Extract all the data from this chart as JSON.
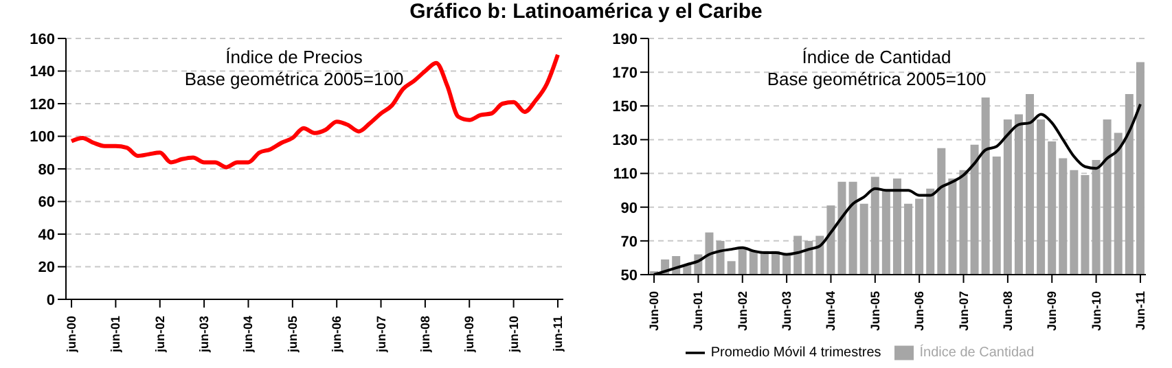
{
  "chart_data": [
    {
      "type": "line",
      "title": "Gráfico b: Latinoamérica y el Caribe",
      "annotations": [
        "Índice de Precios",
        "Base geométrica 2005=100"
      ],
      "categories": [
        "jun-00",
        null,
        null,
        null,
        "jun-01",
        null,
        null,
        null,
        "jun-02",
        null,
        null,
        null,
        "jun-03",
        null,
        null,
        null,
        "jun-04",
        null,
        null,
        null,
        "jun-05",
        null,
        null,
        null,
        "jun-06",
        null,
        null,
        null,
        "jun-07",
        null,
        null,
        null,
        "jun-08",
        null,
        null,
        null,
        "jun-09",
        null,
        null,
        null,
        "jun-10",
        null,
        null,
        null,
        "jun-11"
      ],
      "series": [
        {
          "color": "#ff0000",
          "values": [
            97,
            99,
            96,
            94,
            94,
            93,
            88,
            89,
            90,
            84,
            86,
            87,
            84,
            84,
            81,
            84,
            84,
            90,
            92,
            96,
            99,
            105,
            102,
            104,
            109,
            107,
            103,
            108,
            114,
            119,
            129,
            134,
            140,
            145,
            131,
            112,
            110,
            113,
            114,
            120,
            121,
            115,
            122,
            132,
            150
          ]
        }
      ],
      "ylim": [
        0,
        160
      ],
      "yticks": [
        0,
        20,
        40,
        60,
        80,
        100,
        120,
        140,
        160
      ],
      "grid": "y",
      "legend": false,
      "marker": "none",
      "line_style": "solid"
    },
    {
      "type": "bar",
      "annotations": [
        "Índice de Cantidad",
        "Base geométrica 2005=100"
      ],
      "categories": [
        "Jun-00",
        null,
        null,
        null,
        "Jun-01",
        null,
        null,
        null,
        "Jun-02",
        null,
        null,
        null,
        "Jun-03",
        null,
        null,
        null,
        "Jun-04",
        null,
        null,
        null,
        "Jun-05",
        null,
        null,
        null,
        "Jun-06",
        null,
        null,
        null,
        "Jun-07",
        null,
        null,
        null,
        "Jun-08",
        null,
        null,
        null,
        "Jun-09",
        null,
        null,
        null,
        "Jun-10",
        null,
        null,
        null,
        "Jun-11"
      ],
      "series": [
        {
          "name": "Índice de Cantidad",
          "color": "#a6a6a6",
          "values": [
            52,
            59,
            61,
            56,
            62,
            75,
            70,
            58,
            66,
            64,
            64,
            64,
            62,
            73,
            70,
            73,
            91,
            105,
            105,
            92,
            108,
            100,
            107,
            92,
            95,
            101,
            125,
            107,
            112,
            127,
            155,
            120,
            142,
            145,
            157,
            142,
            129,
            119,
            112,
            109,
            118,
            142,
            134,
            157,
            176
          ]
        },
        {
          "name": "Promedio Móvil 4 trimestres",
          "type": "line",
          "color": "#000000",
          "values": [
            50,
            52,
            54,
            56,
            58,
            62,
            64,
            65,
            66,
            64,
            63,
            63,
            62,
            63,
            65,
            67,
            75,
            84,
            92,
            96,
            101,
            100,
            100,
            100,
            97,
            97,
            102,
            105,
            109,
            116,
            124,
            126,
            133,
            139,
            140,
            145,
            140,
            130,
            120,
            114,
            113,
            119,
            124,
            135,
            151
          ]
        }
      ],
      "ylim": [
        50,
        190
      ],
      "yticks": [
        50,
        70,
        90,
        110,
        130,
        150,
        170,
        190
      ],
      "grid": "y",
      "legend": "bottom",
      "marker": "none",
      "line_style": "solid"
    }
  ]
}
